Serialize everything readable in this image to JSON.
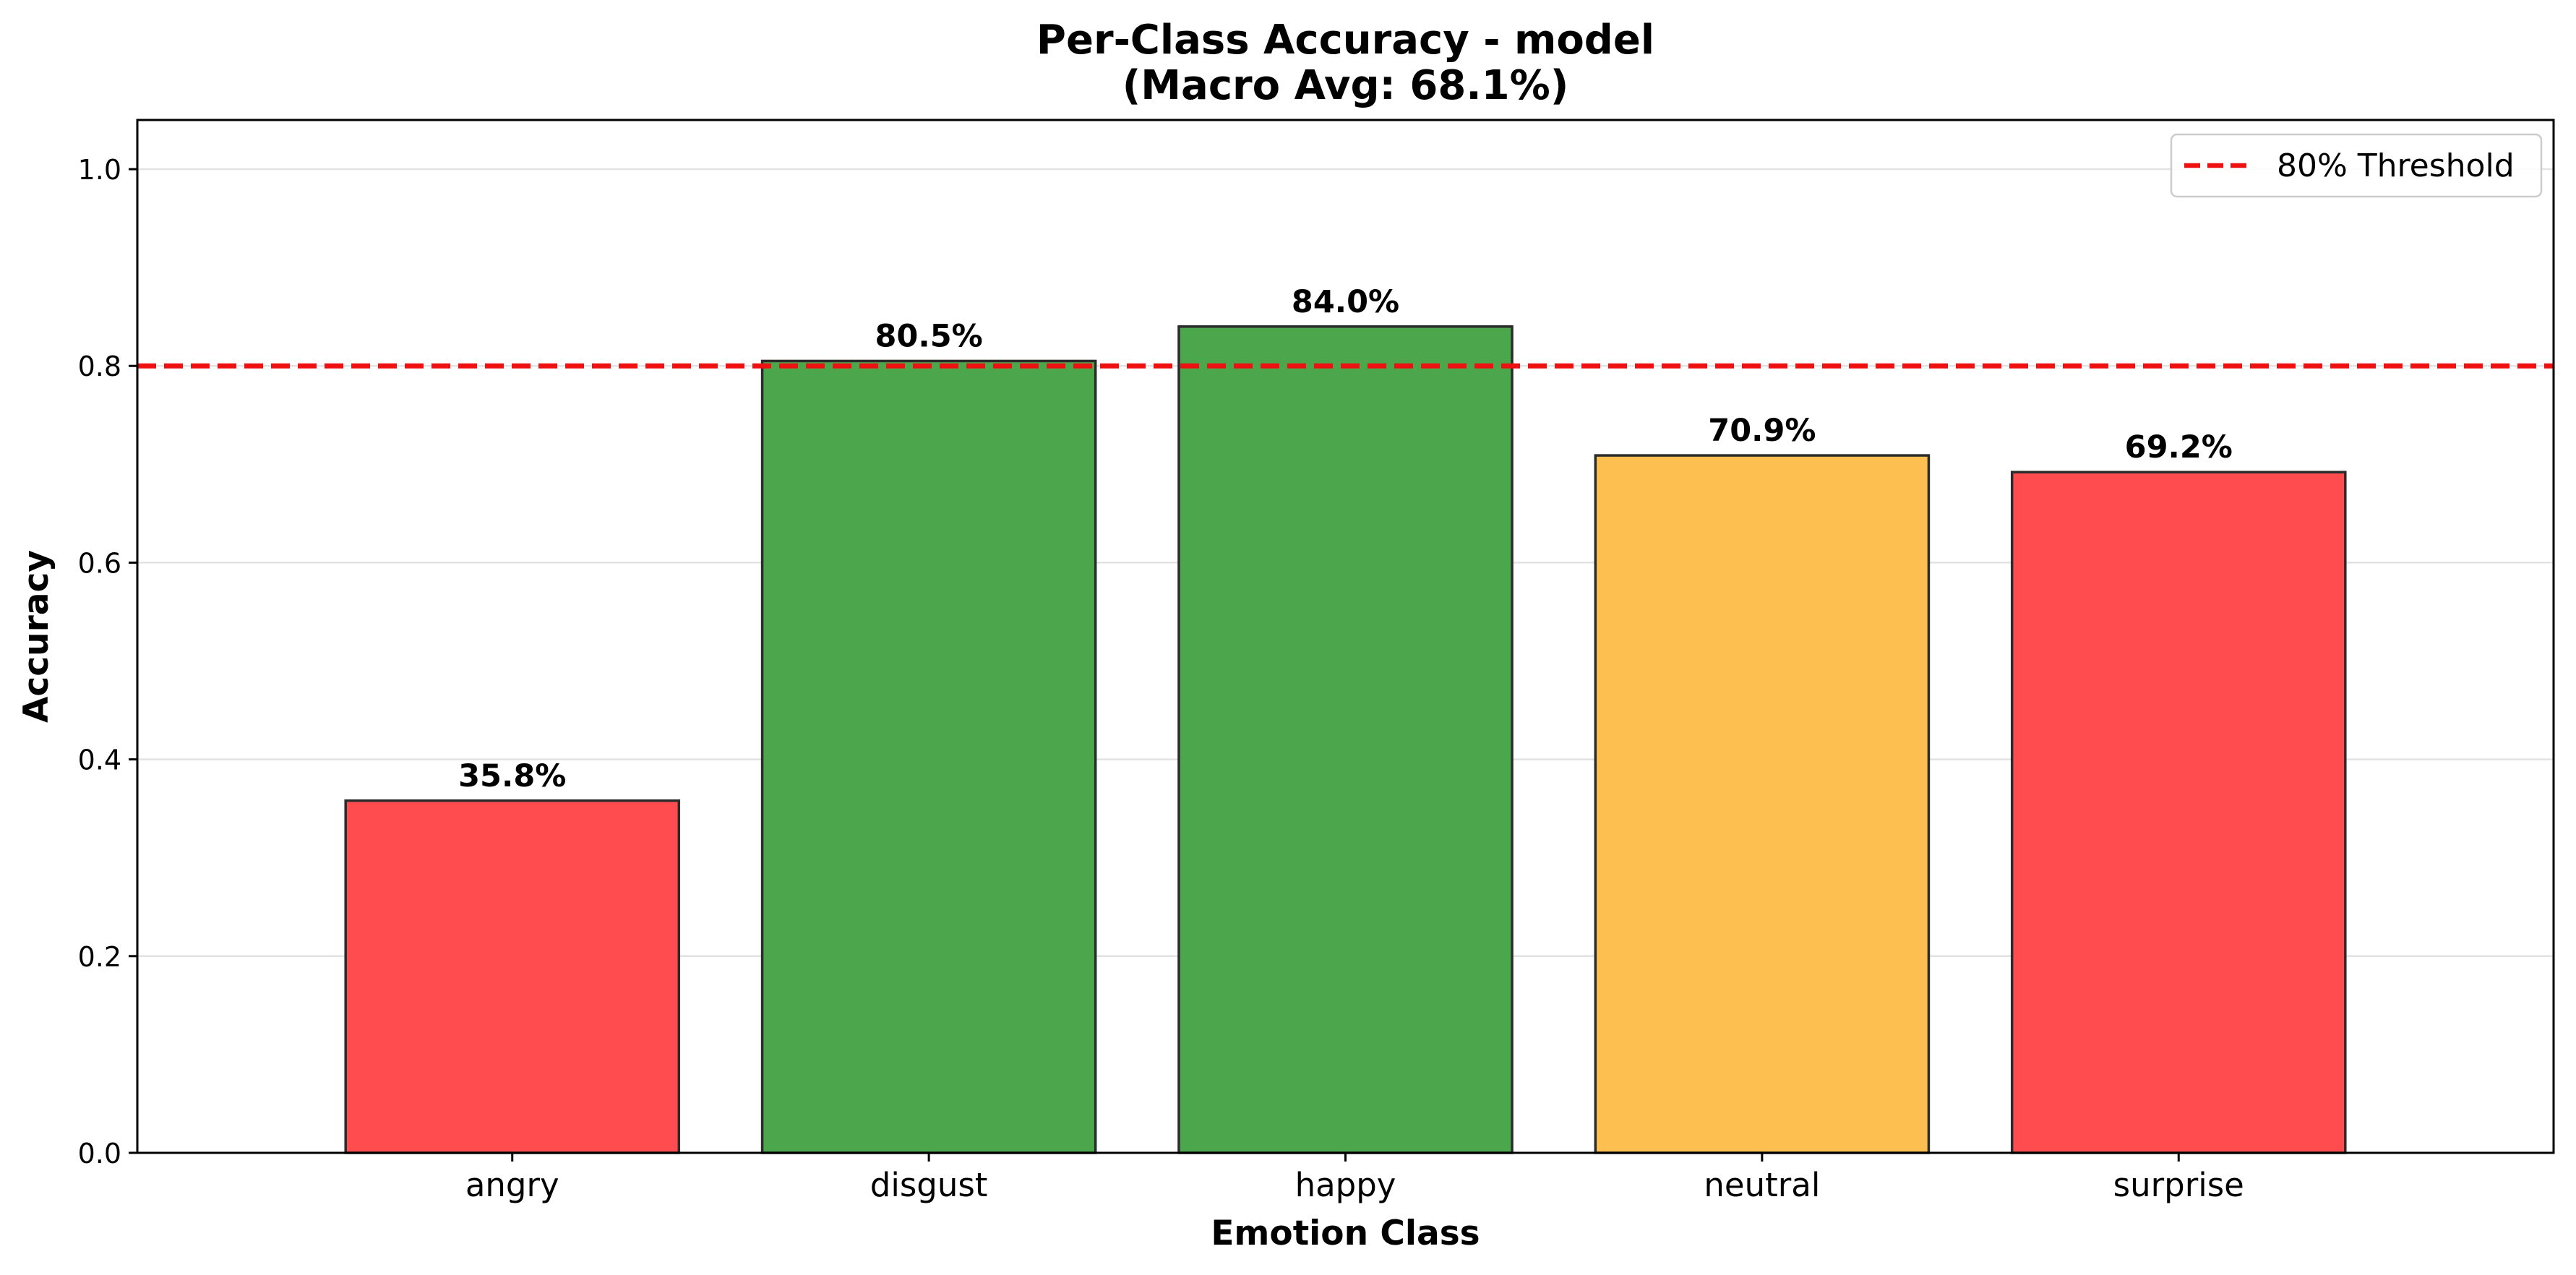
{
  "chart_data": {
    "type": "bar",
    "title": "Per-Class Accuracy - model",
    "subtitle": "(Macro Avg: 68.1%)",
    "xlabel": "Emotion Class",
    "ylabel": "Accuracy",
    "categories": [
      "angry",
      "disgust",
      "happy",
      "neutral",
      "surprise"
    ],
    "values": [
      0.358,
      0.805,
      0.84,
      0.709,
      0.692
    ],
    "value_labels": [
      "35.8%",
      "80.5%",
      "84.0%",
      "70.9%",
      "69.2%"
    ],
    "bar_colors": [
      "#ff4d4f",
      "#4ca64c",
      "#4ca64c",
      "#fdbf4f",
      "#ff4d4f"
    ],
    "ylim": [
      0,
      1.05
    ],
    "yticks": [
      0.0,
      0.2,
      0.4,
      0.6,
      0.8,
      1.0
    ],
    "ytick_labels": [
      "0.0",
      "0.2",
      "0.4",
      "0.6",
      "0.8",
      "1.0"
    ],
    "grid": "horizontal",
    "threshold": {
      "value": 0.8,
      "label": "80% Threshold",
      "color": "#ee1111",
      "style": "dashed"
    },
    "legend_position": "top-right"
  }
}
